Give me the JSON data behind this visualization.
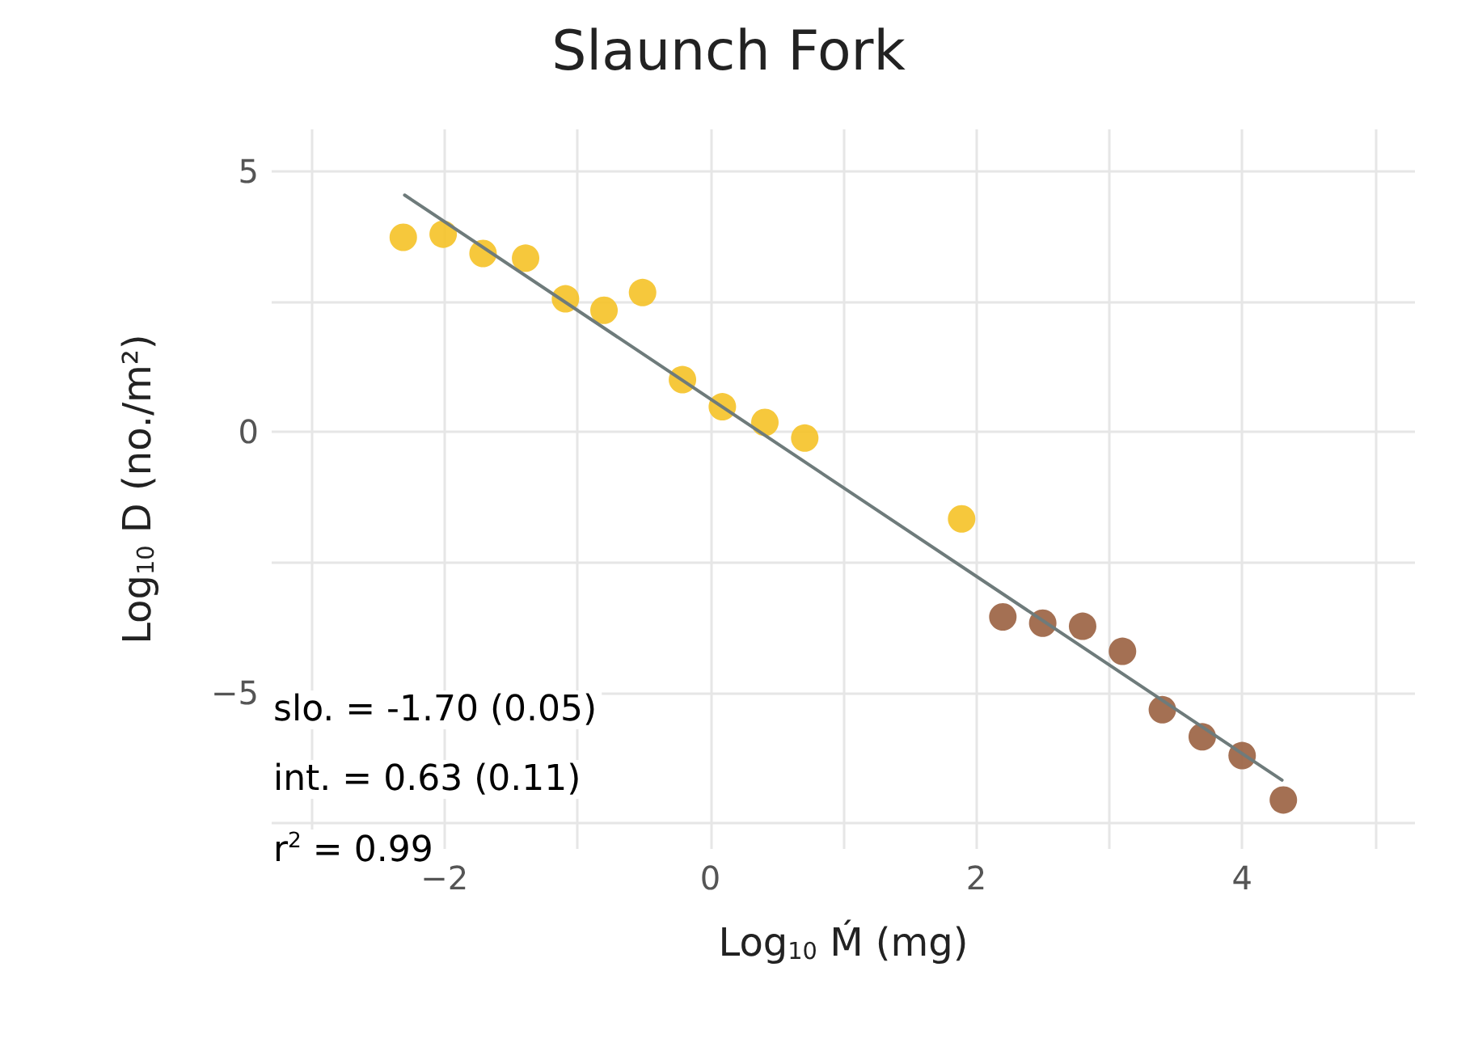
{
  "chart_data": {
    "type": "scatter",
    "title": "Slaunch Fork",
    "xlabel": "Log$_{10}$ Ḿ (mg)",
    "ylabel": "Log$_{10}$ D (no./m²)",
    "xlim": [
      -3.3,
      5.3
    ],
    "ylim": [
      -8,
      5.8
    ],
    "xticks": [
      {
        "value": -3,
        "label": null
      },
      -2,
      {
        "value": -1,
        "label": null
      },
      0,
      {
        "value": 1,
        "label": null
      },
      2,
      {
        "value": 3,
        "label": null
      },
      4,
      {
        "value": 5,
        "label": null
      }
    ],
    "yticks": [
      {
        "value": -7.5,
        "label": null
      },
      -5,
      {
        "value": -2.5,
        "label": null
      },
      0,
      {
        "value": 2.5,
        "label": null
      },
      5
    ],
    "grid": true,
    "marker": "circle",
    "series": [
      {
        "color": "#f5c227",
        "x": [
          -2.31,
          -2.01,
          -1.71,
          -1.39,
          -1.09,
          -0.8,
          -0.51,
          -0.21,
          0.09,
          0.41,
          0.71,
          1.89
        ],
        "values": [
          3.73,
          3.79,
          3.42,
          3.33,
          2.55,
          2.33,
          2.67,
          1.0,
          0.48,
          0.18,
          -0.12,
          -1.67
        ]
      },
      {
        "color": "#9a6040",
        "x": [
          2.2,
          2.5,
          2.8,
          3.1,
          3.4,
          3.7,
          4.0,
          4.31
        ],
        "values": [
          -3.55,
          -3.67,
          -3.73,
          -4.21,
          -5.33,
          -5.85,
          -6.21,
          -7.06
        ]
      },
      {
        "type": "line",
        "color": "#6e7b7b",
        "marker": "none",
        "x": [
          -2.3,
          4.3
        ],
        "values": [
          4.54,
          -6.68
        ]
      }
    ],
    "annotations": [
      "slo. = -1.70 (0.05)",
      "int. = 0.63 (0.11)",
      "r$^{2}$ = 0.99"
    ]
  }
}
